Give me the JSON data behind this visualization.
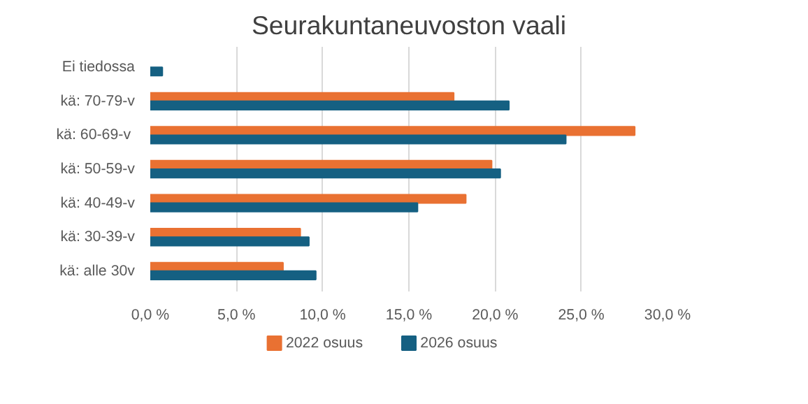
{
  "chart_data": {
    "type": "bar",
    "orientation": "horizontal",
    "title": "Seurakuntaneuvoston vaali",
    "categories": [
      "Ei tiedossa",
      "kä: 70-79-v",
      "kä:  60-69-v",
      "kä: 50-59-v",
      "kä: 40-49-v",
      "kä: 30-39-v",
      "kä: alle 30v"
    ],
    "series": [
      {
        "name": "2022 osuus",
        "color": "#e97132",
        "values": [
          null,
          17.6,
          28.1,
          19.8,
          18.3,
          8.7,
          7.7
        ]
      },
      {
        "name": "2026 osuus",
        "color": "#156082",
        "values": [
          0.7,
          20.8,
          24.1,
          20.3,
          15.5,
          9.2,
          9.6
        ]
      }
    ],
    "xlim": [
      0,
      30
    ],
    "xticks": [
      {
        "value": 0,
        "label": "0,0 %"
      },
      {
        "value": 5,
        "label": "5,0 %"
      },
      {
        "value": 10,
        "label": "10,0 %"
      },
      {
        "value": 15,
        "label": "15,0 %"
      },
      {
        "value": 20,
        "label": "20,0 %"
      },
      {
        "value": 25,
        "label": "25,0 %"
      },
      {
        "value": 30,
        "label": "30,0 %"
      }
    ],
    "grid": "x",
    "legend": "bottom"
  }
}
